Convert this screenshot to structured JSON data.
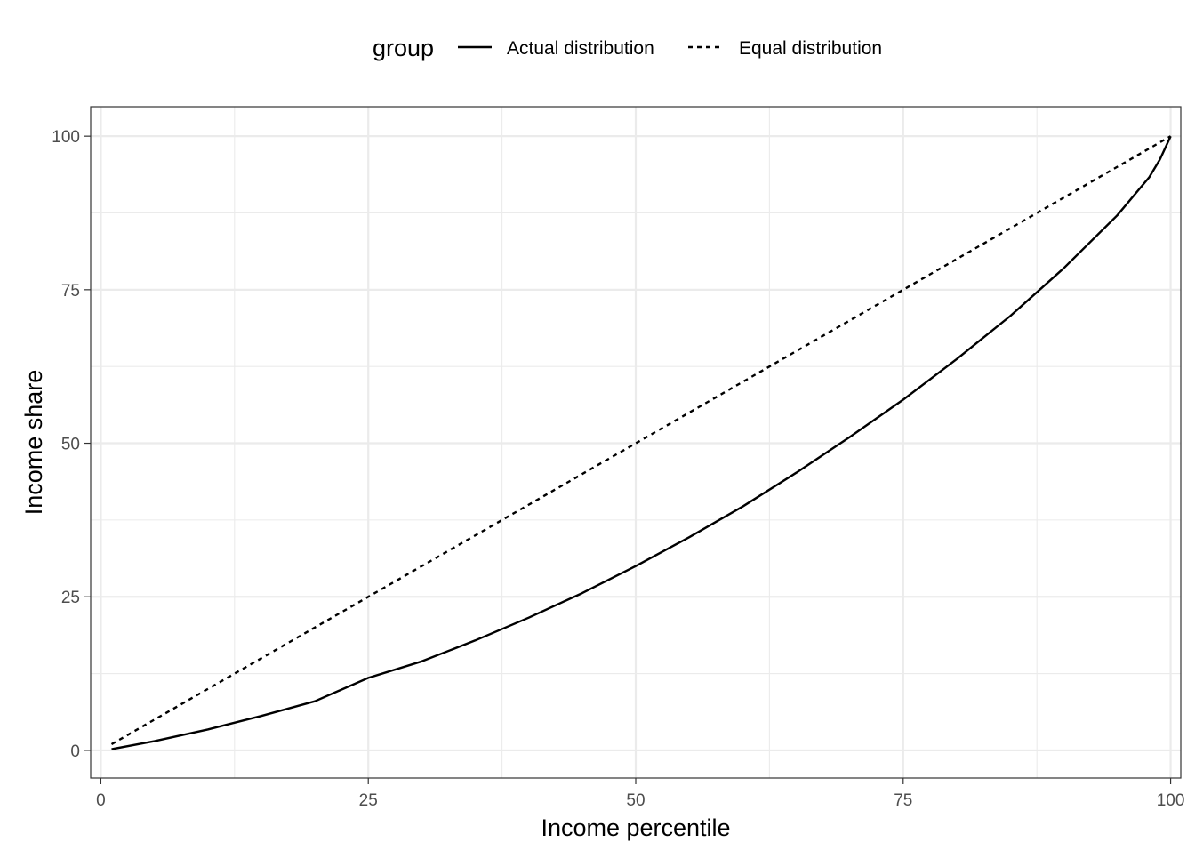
{
  "chart_data": {
    "type": "line",
    "xlabel": "Income percentile",
    "ylabel": "Income share",
    "xlim": [
      -0.95,
      100.95
    ],
    "ylim": [
      -4.5,
      104.8
    ],
    "x_ticks": [
      0,
      25,
      50,
      75,
      100
    ],
    "x_tick_labels": [
      "0",
      "25",
      "50",
      "75",
      "100"
    ],
    "y_ticks": [
      0,
      25,
      50,
      75,
      100
    ],
    "y_tick_labels": [
      "0",
      "25",
      "50",
      "75",
      "100"
    ],
    "x_minor_ticks": [
      12.5,
      37.5,
      62.5,
      87.5
    ],
    "y_minor_ticks": [
      12.5,
      37.5,
      62.5,
      87.5
    ],
    "grid": true,
    "legend": {
      "title": "group",
      "position": "top"
    },
    "series": [
      {
        "name": "Actual distribution",
        "line_style": "solid",
        "color": "#000000",
        "x": [
          1,
          5,
          10,
          15,
          20,
          25,
          30,
          35,
          40,
          45,
          50,
          55,
          60,
          65,
          70,
          75,
          80,
          85,
          90,
          95,
          98,
          99,
          100
        ],
        "y": [
          0.2,
          1.5,
          3.4,
          5.6,
          8.0,
          11.8,
          14.5,
          17.9,
          21.6,
          25.6,
          30.0,
          34.7,
          39.7,
          45.2,
          51.0,
          57.1,
          63.7,
          70.7,
          78.5,
          87.1,
          93.3,
          96.2,
          100
        ]
      },
      {
        "name": "Equal distribution",
        "line_style": "dotted",
        "color": "#000000",
        "x": [
          1,
          100
        ],
        "y": [
          1,
          100
        ]
      }
    ]
  }
}
